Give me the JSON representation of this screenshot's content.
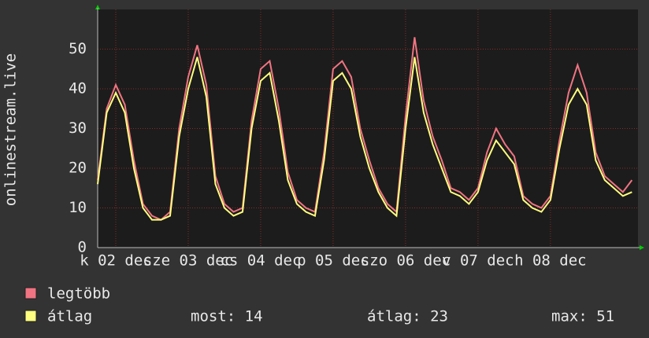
{
  "chart_data": {
    "type": "line",
    "ylabel": "onlinestream.live",
    "x": [
      0,
      3,
      6,
      9,
      12,
      15,
      18,
      21,
      24,
      27,
      30,
      33,
      36,
      39,
      42,
      45,
      48,
      51,
      54,
      57,
      60,
      63,
      66,
      69,
      72,
      75,
      78,
      81,
      84,
      87,
      90,
      93,
      96,
      99,
      102,
      105,
      108,
      111,
      114,
      117,
      120,
      123,
      126,
      129,
      132,
      135,
      138,
      141,
      144,
      147,
      150,
      153,
      156,
      159,
      162,
      165,
      168,
      171,
      174,
      177
    ],
    "xlim": [
      0,
      179
    ],
    "xticks": [
      {
        "value": 6,
        "label": "k 02 dec"
      },
      {
        "value": 30,
        "label": "sze 03 dec"
      },
      {
        "value": 54,
        "label": "cs 04 dec"
      },
      {
        "value": 78,
        "label": "p 05 dec"
      },
      {
        "value": 102,
        "label": "szo 06 dec"
      },
      {
        "value": 126,
        "label": "v 07 dec"
      },
      {
        "value": 150,
        "label": "h 08 dec"
      }
    ],
    "ylim": [
      0,
      60
    ],
    "yticks": [
      0,
      10,
      20,
      30,
      40,
      50
    ],
    "grid": true,
    "series": [
      {
        "name": "legtöbb",
        "color": "#f07482",
        "values": [
          17,
          35,
          41,
          36,
          22,
          11,
          8,
          7,
          9,
          30,
          43,
          51,
          41,
          18,
          11,
          9,
          10,
          32,
          45,
          47,
          35,
          19,
          12,
          10,
          9,
          24,
          45,
          47,
          43,
          30,
          22,
          15,
          11,
          9,
          33,
          53,
          37,
          28,
          22,
          15,
          14,
          12,
          15,
          24,
          30,
          26,
          23,
          13,
          11,
          10,
          13,
          27,
          39,
          46,
          39,
          24,
          18,
          16,
          14,
          17
        ]
      },
      {
        "name": "átlag",
        "color": "#ffff80",
        "values": [
          16,
          34,
          39,
          34,
          20,
          10,
          7,
          7,
          8,
          28,
          40,
          48,
          38,
          16,
          10,
          8,
          9,
          30,
          42,
          44,
          32,
          17,
          11,
          9,
          8,
          22,
          42,
          44,
          40,
          28,
          20,
          14,
          10,
          8,
          30,
          48,
          34,
          26,
          20,
          14,
          13,
          11,
          14,
          22,
          27,
          24,
          21,
          12,
          10,
          9,
          12,
          25,
          36,
          40,
          36,
          22,
          17,
          15,
          13,
          14
        ]
      }
    ],
    "stats": [
      "most: 14",
      "átlag: 23",
      "max: 51"
    ]
  }
}
